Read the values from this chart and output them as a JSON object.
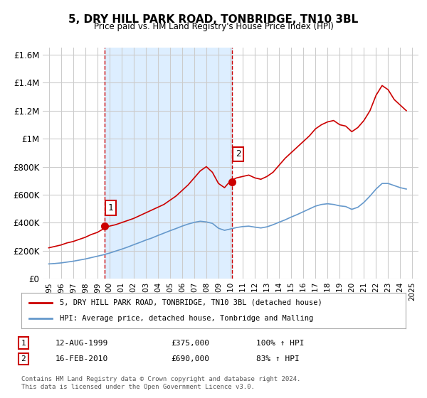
{
  "title": "5, DRY HILL PARK ROAD, TONBRIDGE, TN10 3BL",
  "subtitle": "Price paid vs. HM Land Registry's House Price Index (HPI)",
  "background_color": "#ffffff",
  "plot_bg_color": "#ffffff",
  "grid_color": "#cccccc",
  "shaded_region": [
    1999.6,
    2010.1
  ],
  "shaded_color": "#ddeeff",
  "sale1_x": 1999.62,
  "sale1_y": 375000,
  "sale2_x": 2010.12,
  "sale2_y": 690000,
  "sale_marker_color": "#cc0000",
  "red_line_color": "#cc0000",
  "blue_line_color": "#6699cc",
  "annotation1_label": "1",
  "annotation2_label": "2",
  "annotation_box_color": "#ffffff",
  "annotation_box_edge": "#cc0000",
  "vline_color": "#cc0000",
  "ylim": [
    0,
    1650000
  ],
  "xlim": [
    1994.5,
    2025.5
  ],
  "yticks": [
    0,
    200000,
    400000,
    600000,
    800000,
    1000000,
    1200000,
    1400000,
    1600000
  ],
  "ytick_labels": [
    "£0",
    "£200K",
    "£400K",
    "£600K",
    "£800K",
    "£1M",
    "£1.2M",
    "£1.4M",
    "£1.6M"
  ],
  "xticks": [
    1995,
    1996,
    1997,
    1998,
    1999,
    2000,
    2001,
    2002,
    2003,
    2004,
    2005,
    2006,
    2007,
    2008,
    2009,
    2010,
    2011,
    2012,
    2013,
    2014,
    2015,
    2016,
    2017,
    2018,
    2019,
    2020,
    2021,
    2022,
    2023,
    2024,
    2025
  ],
  "legend_label_red": "5, DRY HILL PARK ROAD, TONBRIDGE, TN10 3BL (detached house)",
  "legend_label_blue": "HPI: Average price, detached house, Tonbridge and Malling",
  "table_row1": [
    "1",
    "12-AUG-1999",
    "£375,000",
    "100% ↑ HPI"
  ],
  "table_row2": [
    "2",
    "16-FEB-2010",
    "£690,000",
    "83% ↑ HPI"
  ],
  "footer": "Contains HM Land Registry data © Crown copyright and database right 2024.\nThis data is licensed under the Open Government Licence v3.0.",
  "red_x": [
    1995.0,
    1995.5,
    1996.0,
    1996.5,
    1997.0,
    1997.5,
    1998.0,
    1998.5,
    1999.0,
    1999.5,
    2000.0,
    2000.5,
    2001.0,
    2001.5,
    2002.0,
    2002.5,
    2003.0,
    2003.5,
    2004.0,
    2004.5,
    2005.0,
    2005.5,
    2006.0,
    2006.5,
    2007.0,
    2007.5,
    2008.0,
    2008.5,
    2009.0,
    2009.5,
    2010.0,
    2010.5,
    2011.0,
    2011.5,
    2012.0,
    2012.5,
    2013.0,
    2013.5,
    2014.0,
    2014.5,
    2015.0,
    2015.5,
    2016.0,
    2016.5,
    2017.0,
    2017.5,
    2018.0,
    2018.5,
    2019.0,
    2019.5,
    2020.0,
    2020.5,
    2021.0,
    2021.5,
    2022.0,
    2022.5,
    2023.0,
    2023.5,
    2024.0,
    2024.5
  ],
  "red_y": [
    220000,
    230000,
    240000,
    255000,
    265000,
    280000,
    295000,
    315000,
    330000,
    355000,
    375000,
    385000,
    400000,
    415000,
    430000,
    450000,
    470000,
    490000,
    510000,
    530000,
    560000,
    590000,
    630000,
    670000,
    720000,
    770000,
    800000,
    760000,
    680000,
    650000,
    700000,
    720000,
    730000,
    740000,
    720000,
    710000,
    730000,
    760000,
    810000,
    860000,
    900000,
    940000,
    980000,
    1020000,
    1070000,
    1100000,
    1120000,
    1130000,
    1100000,
    1090000,
    1050000,
    1080000,
    1130000,
    1200000,
    1310000,
    1380000,
    1350000,
    1280000,
    1240000,
    1200000
  ],
  "blue_x": [
    1995.0,
    1995.5,
    1996.0,
    1996.5,
    1997.0,
    1997.5,
    1998.0,
    1998.5,
    1999.0,
    1999.5,
    2000.0,
    2000.5,
    2001.0,
    2001.5,
    2002.0,
    2002.5,
    2003.0,
    2003.5,
    2004.0,
    2004.5,
    2005.0,
    2005.5,
    2006.0,
    2006.5,
    2007.0,
    2007.5,
    2008.0,
    2008.5,
    2009.0,
    2009.5,
    2010.0,
    2010.5,
    2011.0,
    2011.5,
    2012.0,
    2012.5,
    2013.0,
    2013.5,
    2014.0,
    2014.5,
    2015.0,
    2015.5,
    2016.0,
    2016.5,
    2017.0,
    2017.5,
    2018.0,
    2018.5,
    2019.0,
    2019.5,
    2020.0,
    2020.5,
    2021.0,
    2021.5,
    2022.0,
    2022.5,
    2023.0,
    2023.5,
    2024.0,
    2024.5
  ],
  "blue_y": [
    105000,
    108000,
    112000,
    118000,
    124000,
    132000,
    140000,
    150000,
    160000,
    170000,
    182000,
    196000,
    210000,
    225000,
    242000,
    258000,
    275000,
    290000,
    308000,
    325000,
    342000,
    358000,
    375000,
    390000,
    402000,
    410000,
    405000,
    395000,
    360000,
    345000,
    355000,
    365000,
    372000,
    375000,
    368000,
    362000,
    370000,
    385000,
    403000,
    420000,
    440000,
    458000,
    478000,
    498000,
    518000,
    530000,
    535000,
    530000,
    520000,
    515000,
    495000,
    510000,
    545000,
    590000,
    640000,
    680000,
    680000,
    665000,
    650000,
    640000
  ]
}
